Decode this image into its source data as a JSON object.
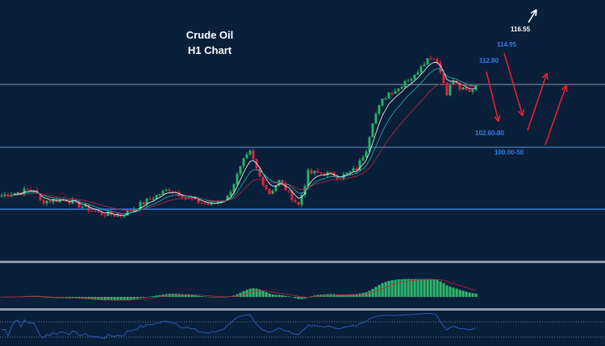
{
  "chart_data": {
    "type": "candlestick",
    "title": "Crude Oil",
    "subtitle": "H1 Chart",
    "price_points": [
      [
        0,
        95.25
      ],
      [
        10,
        95.92
      ],
      [
        12,
        94.67
      ],
      [
        20,
        94.83
      ],
      [
        30,
        93.42
      ],
      [
        37,
        93.17
      ],
      [
        47,
        95.08
      ],
      [
        52,
        95.92
      ],
      [
        60,
        94.67
      ],
      [
        65,
        94.25
      ],
      [
        70,
        95.08
      ],
      [
        75,
        98.83
      ],
      [
        77,
        99.67
      ],
      [
        80,
        97.17
      ],
      [
        83,
        95.5
      ],
      [
        86,
        96.75
      ],
      [
        90,
        95.08
      ],
      [
        92,
        94.25
      ],
      [
        95,
        97.58
      ],
      [
        100,
        97.58
      ],
      [
        105,
        97.17
      ],
      [
        110,
        98.0
      ],
      [
        113,
        100.08
      ],
      [
        115,
        103.0
      ],
      [
        118,
        105.08
      ],
      [
        120,
        105.92
      ],
      [
        123,
        106.33
      ],
      [
        125,
        107.17
      ],
      [
        128,
        107.58
      ],
      [
        130,
        108.83
      ],
      [
        133,
        109.67
      ],
      [
        135,
        109.25
      ],
      [
        136,
        108.0
      ],
      [
        138,
        105.92
      ],
      [
        140,
        107.17
      ],
      [
        142,
        106.33
      ],
      [
        145,
        105.92
      ],
      [
        147,
        106.75
      ]
    ],
    "horizontal_levels": [
      106.75,
      100.25,
      93.83
    ],
    "annotations": [
      "116.55",
      "114.95",
      "112.80",
      "102.60-80",
      "100.00-50"
    ],
    "indicators": [
      "Moving averages",
      "MACD",
      "RSI"
    ]
  },
  "colors": {
    "background": "#0a1f3a",
    "up": "#27b163",
    "down": "#e0243a",
    "arrow": "#e8202a",
    "label": "#2f7fe8"
  }
}
